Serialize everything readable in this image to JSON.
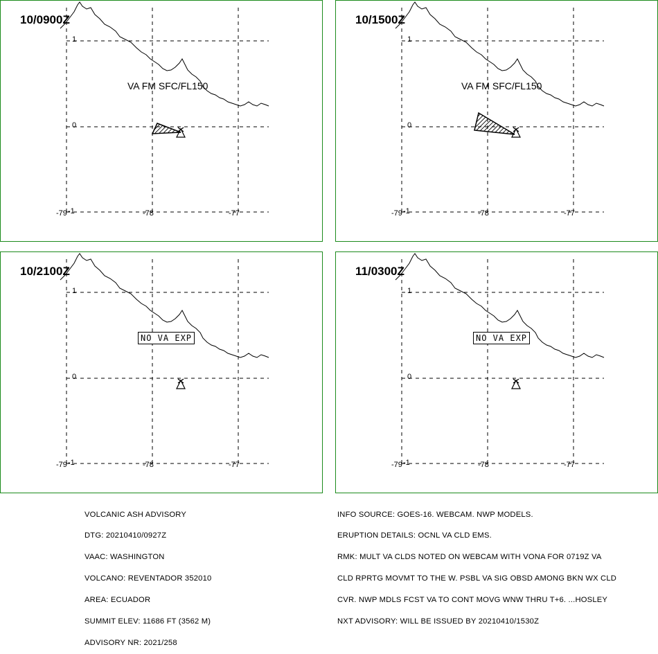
{
  "panels": [
    {
      "time": "10/0900Z",
      "label": "VA FM SFC/FL150",
      "label_type": "text",
      "cloud": "small"
    },
    {
      "time": "10/1500Z",
      "label": "VA FM SFC/FL150",
      "label_type": "text",
      "cloud": "large"
    },
    {
      "time": "10/2100Z",
      "label": "NO VA EXP",
      "label_type": "box",
      "cloud": "none"
    },
    {
      "time": "11/0300Z",
      "label": "NO VA EXP",
      "label_type": "box",
      "cloud": "none"
    }
  ],
  "axes": {
    "lat_ticks": [
      "1",
      "0",
      "-1"
    ],
    "lon_ticks": [
      "-79",
      "-78",
      "-77"
    ]
  },
  "colors": {
    "panel_border": "#1a8a1a",
    "lines": "#000000"
  },
  "footer_left": [
    "VOLCANIC ASH ADVISORY",
    "DTG: 20210410/0927Z",
    "VAAC: WASHINGTON",
    "VOLCANO: REVENTADOR 352010",
    "AREA: ECUADOR",
    "SUMMIT ELEV: 11686 FT (3562 M)",
    "ADVISORY NR: 2021/258"
  ],
  "footer_right": [
    "INFO SOURCE: GOES-16. WEBCAM. NWP MODELS.",
    "ERUPTION DETAILS: OCNL VA CLD EMS.",
    "RMK: MULT VA CLDS NOTED ON WEBCAM WITH VONA FOR 0719Z VA",
    "CLD RPRTG MOVMT TO THE W. PSBL VA SIG OBSD AMONG BKN WX CLD",
    "CVR. NWP MDLS FCST VA TO CONT MOVG WNW THRU T+6. ...HOSLEY",
    "NXT ADVISORY: WILL BE ISSUED BY 20210410/1530Z"
  ]
}
